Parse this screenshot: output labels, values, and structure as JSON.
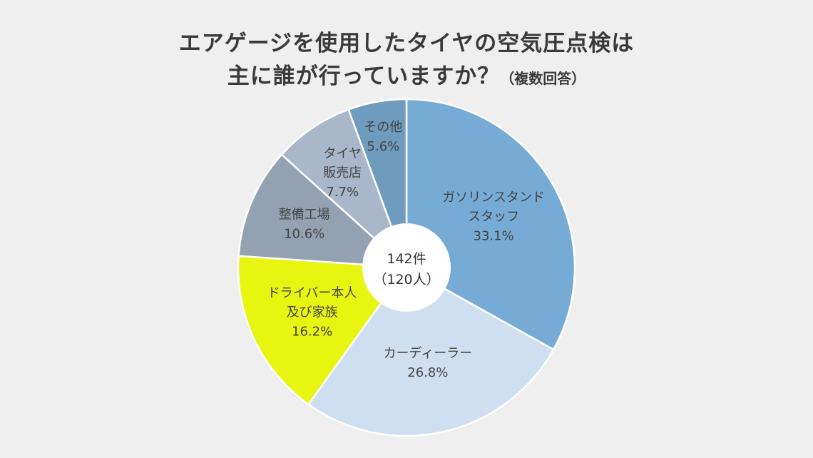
{
  "title": {
    "line1": "エアゲージを使用したタイヤの空気圧点検は",
    "line2": "主に誰が行っていますか？",
    "note": "（複数回答）"
  },
  "chart_data": {
    "type": "pie",
    "title": "エアゲージを使用したタイヤの空気圧点検は主に誰が行っていますか？（複数回答）",
    "unit": "%",
    "center_text": [
      "142件",
      "（120人）"
    ],
    "slices": [
      {
        "label": [
          "ガソリンスタンド",
          "スタッフ"
        ],
        "value": 33.1,
        "value_text": "33.1%",
        "color": "#76abd6"
      },
      {
        "label": [
          "カーディーラー"
        ],
        "value": 26.8,
        "value_text": "26.8%",
        "color": "#cfdff2"
      },
      {
        "label": [
          "ドライバー本人",
          "及び家族"
        ],
        "value": 16.2,
        "value_text": "16.2%",
        "color": "#e7f511"
      },
      {
        "label": [
          "整備工場"
        ],
        "value": 10.6,
        "value_text": "10.6%",
        "color": "#92a2b2"
      },
      {
        "label": [
          "タイヤ",
          "販売店"
        ],
        "value": 7.7,
        "value_text": "7.7%",
        "color": "#a9b7cb"
      },
      {
        "label": [
          "その他"
        ],
        "value": 5.6,
        "value_text": "5.6%",
        "color": "#6f9bbf"
      }
    ]
  }
}
